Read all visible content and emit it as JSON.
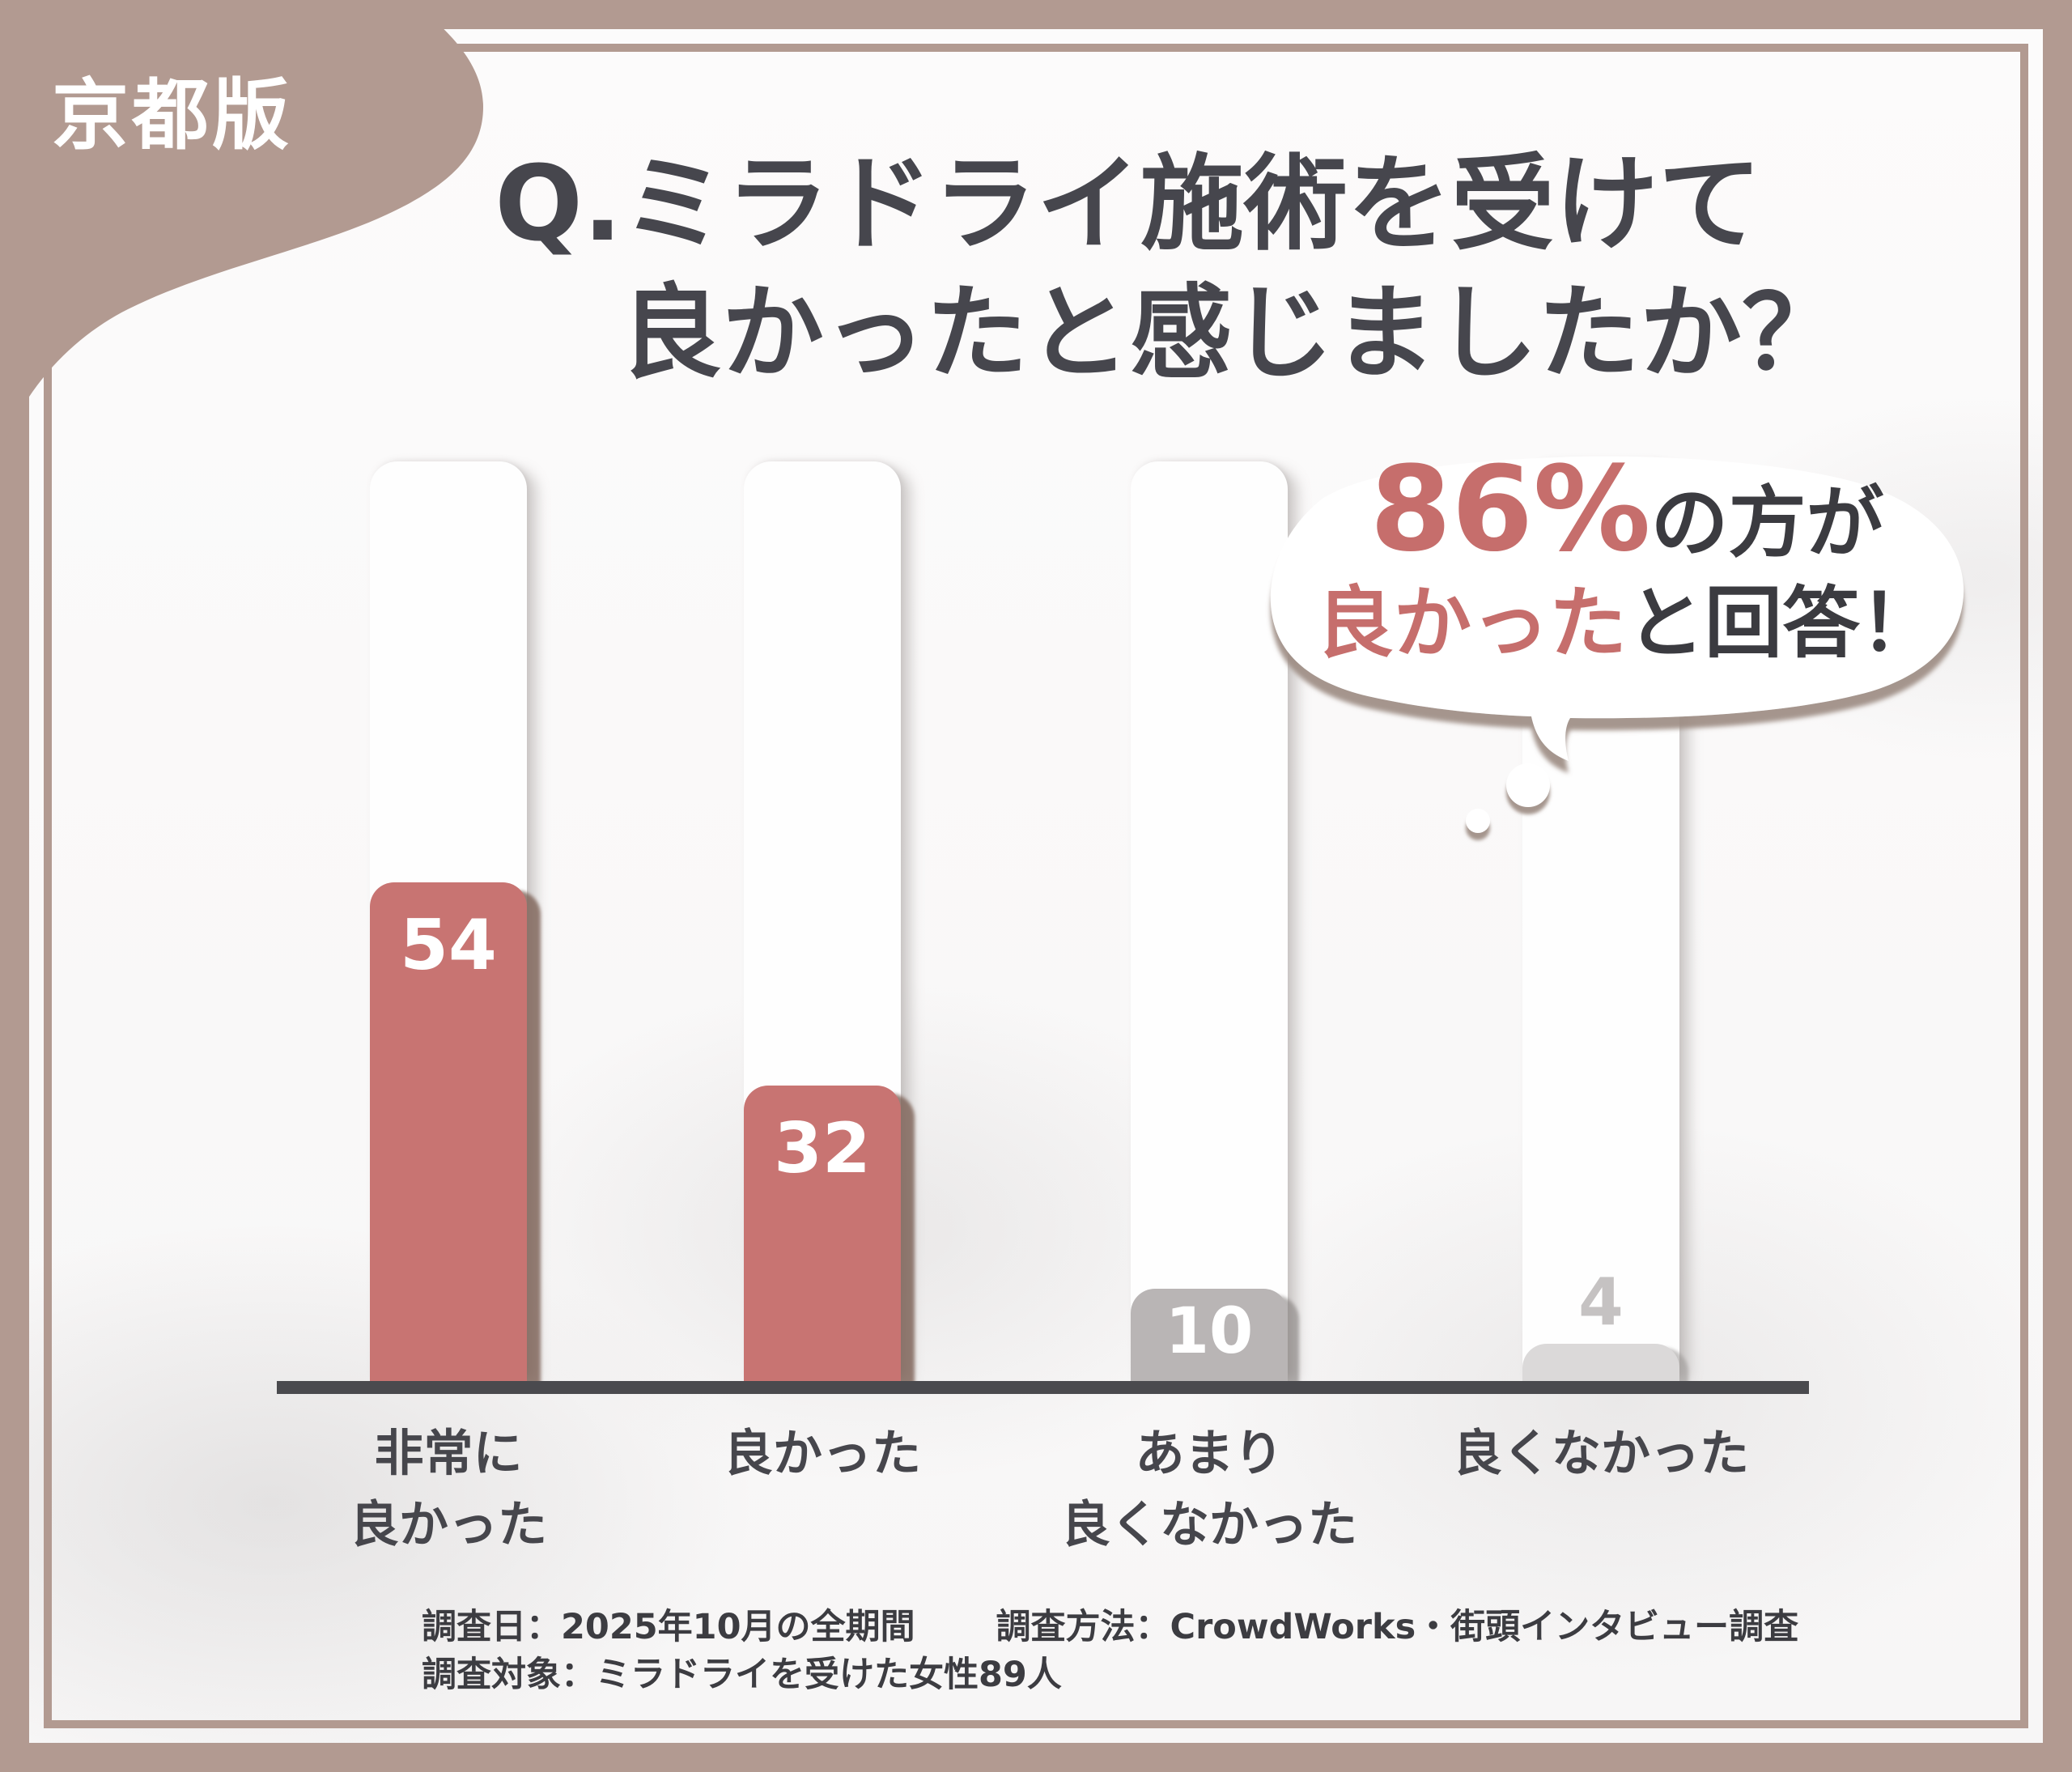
{
  "badge": {
    "label": "京都版"
  },
  "title": {
    "line1": "Q.ミラドライ施術を受けて",
    "line2": "良かったと感じましたか？"
  },
  "bubble": {
    "line1_highlight": "86%",
    "line1_rest": "の方が",
    "line2_highlight": "良かった",
    "line2_rest": "と回答！",
    "highlight_color": "#c66e6c",
    "text_color": "#3b3b40"
  },
  "footer": {
    "survey_date": "調査日：2025年10月の全期間",
    "survey_method": "調査方法：CrowdWorks・街頭インタビュー調査",
    "survey_target": "調査対象：ミラドライを受けた女性89人"
  },
  "colors": {
    "frame": "#b29a91",
    "axis": "#4a4a4e",
    "title_text": "#46464d",
    "bubble_shadow": "#9b8a81"
  },
  "chart_data": {
    "type": "bar",
    "title": "Q.ミラドライ施術を受けて良かったと感じましたか？",
    "categories": [
      "非常に良かった",
      "良かった",
      "あまり良くなかった",
      "良くなかった"
    ],
    "categories_display": [
      "非常に\n良かった",
      "良かった",
      "あまり\n良くなかった",
      "良くなかった"
    ],
    "values": [
      54,
      32,
      10,
      4
    ],
    "bar_colors": [
      "#c87472",
      "#c87472",
      "#b9b5b5",
      "#dbd9d9"
    ],
    "value_label_colors": [
      "#ffffff",
      "#ffffff",
      "#ffffff",
      "#c5c2c2"
    ],
    "value_label_placement": [
      "inside",
      "inside",
      "inside",
      "above"
    ],
    "annotation": "86%の方が良かったと回答！",
    "xlabel": "",
    "ylabel": "",
    "ylim": [
      0,
      54
    ],
    "grid": false,
    "legend": false
  }
}
